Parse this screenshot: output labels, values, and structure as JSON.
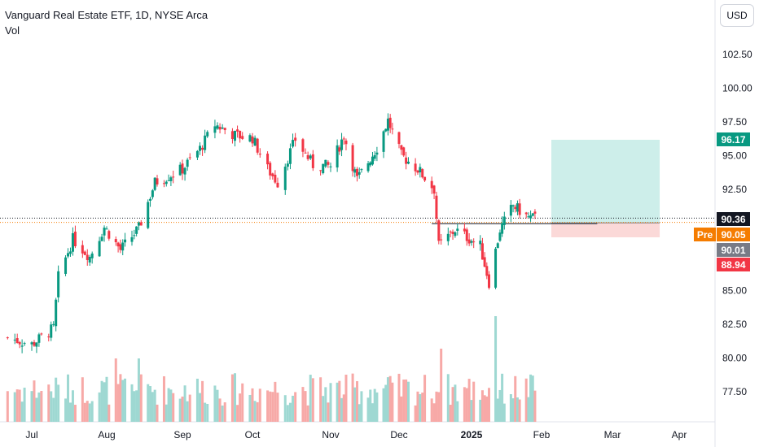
{
  "legend": {
    "title": "Vanguard Real Estate ETF, 1D, NYSE Arca",
    "volume_label": "Vol"
  },
  "currency_button": {
    "label": "USD"
  },
  "price_axis": {
    "ticks": [
      "102.50",
      "100.00",
      "97.50",
      "95.00",
      "92.50",
      "85.00",
      "82.50",
      "80.00",
      "77.50"
    ]
  },
  "time_axis": {
    "labels": [
      "Jul",
      "Aug",
      "Sep",
      "Oct",
      "Nov",
      "Dec",
      "2025",
      "Feb",
      "Mar",
      "Apr"
    ]
  },
  "badges": {
    "target": {
      "value": "96.17",
      "color": "#089981"
    },
    "last": {
      "value": "90.36",
      "color": "#131722"
    },
    "pre_tag": {
      "value": "Pre",
      "color": "#f57c00"
    },
    "pre": {
      "value": "90.05",
      "color": "#f57c00"
    },
    "entry": {
      "value": "90.01",
      "color": "#787b86"
    },
    "stop": {
      "value": "88.94",
      "color": "#f23645"
    }
  },
  "colors": {
    "up": "#089981",
    "down": "#f23645",
    "vol_up": "#9ed8d2",
    "vol_down": "#f7a9a7"
  },
  "position_tool": {
    "target": 96.17,
    "entry": 90.01,
    "stop": 88.94
  },
  "chart_data": {
    "type": "candlestick",
    "symbol": "Vanguard Real Estate ETF",
    "interval": "1D",
    "exchange": "NYSE Arca",
    "y_scale": "linear",
    "last_price": 90.36,
    "pre_market_price": 90.05,
    "horizontal_line": 89.95,
    "price_path": [
      [
        "2024-06-21",
        81.5
      ],
      [
        "2024-07-01",
        81.0
      ],
      [
        "2024-07-10",
        82.2
      ],
      [
        "2024-07-12",
        86.0
      ],
      [
        "2024-07-18",
        88.8
      ],
      [
        "2024-07-25",
        87.5
      ],
      [
        "2024-07-31",
        89.7
      ],
      [
        "2024-08-07",
        88.0
      ],
      [
        "2024-08-15",
        89.6
      ],
      [
        "2024-08-22",
        93.0
      ],
      [
        "2024-09-03",
        94.0
      ],
      [
        "2024-09-10",
        95.5
      ],
      [
        "2024-09-16",
        97.3
      ],
      [
        "2024-09-24",
        96.5
      ],
      [
        "2024-10-01",
        96.3
      ],
      [
        "2024-10-07",
        94.0
      ],
      [
        "2024-10-11",
        93.0
      ],
      [
        "2024-10-18",
        96.2
      ],
      [
        "2024-10-25",
        94.3
      ],
      [
        "2024-11-01",
        94.2
      ],
      [
        "2024-11-07",
        96.5
      ],
      [
        "2024-11-13",
        93.2
      ],
      [
        "2024-11-22",
        95.6
      ],
      [
        "2024-11-27",
        97.6
      ],
      [
        "2024-12-03",
        95.0
      ],
      [
        "2024-12-10",
        94.0
      ],
      [
        "2024-12-17",
        92.5
      ],
      [
        "2024-12-19",
        88.3
      ],
      [
        "2024-12-26",
        89.5
      ],
      [
        "2025-01-06",
        88.3
      ],
      [
        "2025-01-10",
        85.6
      ],
      [
        "2025-01-15",
        89.5
      ],
      [
        "2025-01-21",
        91.3
      ],
      [
        "2025-01-28",
        90.4
      ],
      [
        "2025-01-31",
        90.36
      ]
    ]
  }
}
